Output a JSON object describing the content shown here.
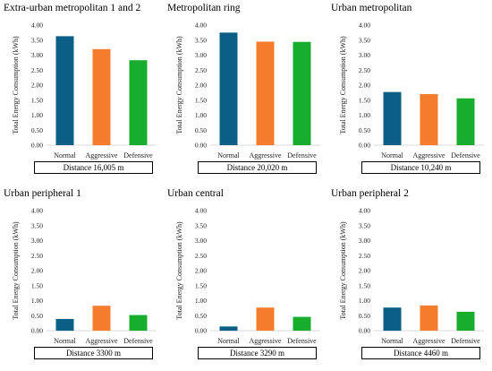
{
  "chart_data": [
    {
      "type": "bar",
      "title": "Extra-urban metropolitan 1 and 2",
      "categories": [
        "Normal",
        "Aggressive",
        "Defensive"
      ],
      "values": [
        3.63,
        3.2,
        2.83
      ],
      "ylabel": "Total Energy Consumption (kWh)",
      "xlabel": "Distance 16,005 m",
      "ylim": [
        0,
        4
      ],
      "yticks": [
        "0.00",
        "0.50",
        "1.00",
        "1.50",
        "2.00",
        "2.50",
        "3.00",
        "3.50",
        "4.00"
      ]
    },
    {
      "type": "bar",
      "title": "Metropolitan ring",
      "categories": [
        "Normal",
        "Aggressive",
        "Defensive"
      ],
      "values": [
        3.75,
        3.45,
        3.44
      ],
      "ylabel": "Total Energy Consumption (kWh)",
      "xlabel": "Distance 20,020 m",
      "ylim": [
        0,
        4
      ],
      "yticks": [
        "0.00",
        "0.50",
        "1.00",
        "1.50",
        "2.00",
        "2.50",
        "3.00",
        "3.50",
        "4.00"
      ]
    },
    {
      "type": "bar",
      "title": "Urban metropolitan",
      "categories": [
        "Normal",
        "Aggressive",
        "Defensive"
      ],
      "values": [
        1.77,
        1.7,
        1.56
      ],
      "ylabel": "Total Energy Consumption (kWh)",
      "xlabel": "Distance 10,240 m",
      "ylim": [
        0,
        4
      ],
      "yticks": [
        "0.00",
        "0.50",
        "1.00",
        "1.50",
        "2.00",
        "2.50",
        "3.00",
        "3.50",
        "4.00"
      ]
    },
    {
      "type": "bar",
      "title": "Urban peripheral 1",
      "categories": [
        "Normal",
        "Aggressive",
        "Defensive"
      ],
      "values": [
        0.39,
        0.83,
        0.52
      ],
      "ylabel": "Total Energy Consumption (kWh)",
      "xlabel": "Distance 3300 m",
      "ylim": [
        0,
        4
      ],
      "yticks": [
        "0.00",
        "0.50",
        "1.00",
        "1.50",
        "2.00",
        "2.50",
        "3.00",
        "3.50",
        "4.00"
      ]
    },
    {
      "type": "bar",
      "title": "Urban central",
      "categories": [
        "Normal",
        "Aggressive",
        "Defensive"
      ],
      "values": [
        0.14,
        0.77,
        0.46
      ],
      "ylabel": "Total Energy Consumption (kWh)",
      "xlabel": "Distance 3290 m",
      "ylim": [
        0,
        4
      ],
      "yticks": [
        "0.00",
        "0.50",
        "1.00",
        "1.50",
        "2.00",
        "2.50",
        "3.00",
        "3.50",
        "4.00"
      ]
    },
    {
      "type": "bar",
      "title": "Urban peripheral 2",
      "categories": [
        "Normal",
        "Aggressive",
        "Defensive"
      ],
      "values": [
        0.77,
        0.84,
        0.63
      ],
      "ylabel": "Total Energy Consumption (kWh)",
      "xlabel": "Distance 4460 m",
      "ylim": [
        0,
        4
      ],
      "yticks": [
        "0.00",
        "0.50",
        "1.00",
        "1.50",
        "2.00",
        "2.50",
        "3.00",
        "3.50",
        "4.00"
      ]
    }
  ],
  "colors": {
    "Normal": "#0b5f86",
    "Aggressive": "#f57c2c",
    "Defensive": "#19ad2d"
  }
}
